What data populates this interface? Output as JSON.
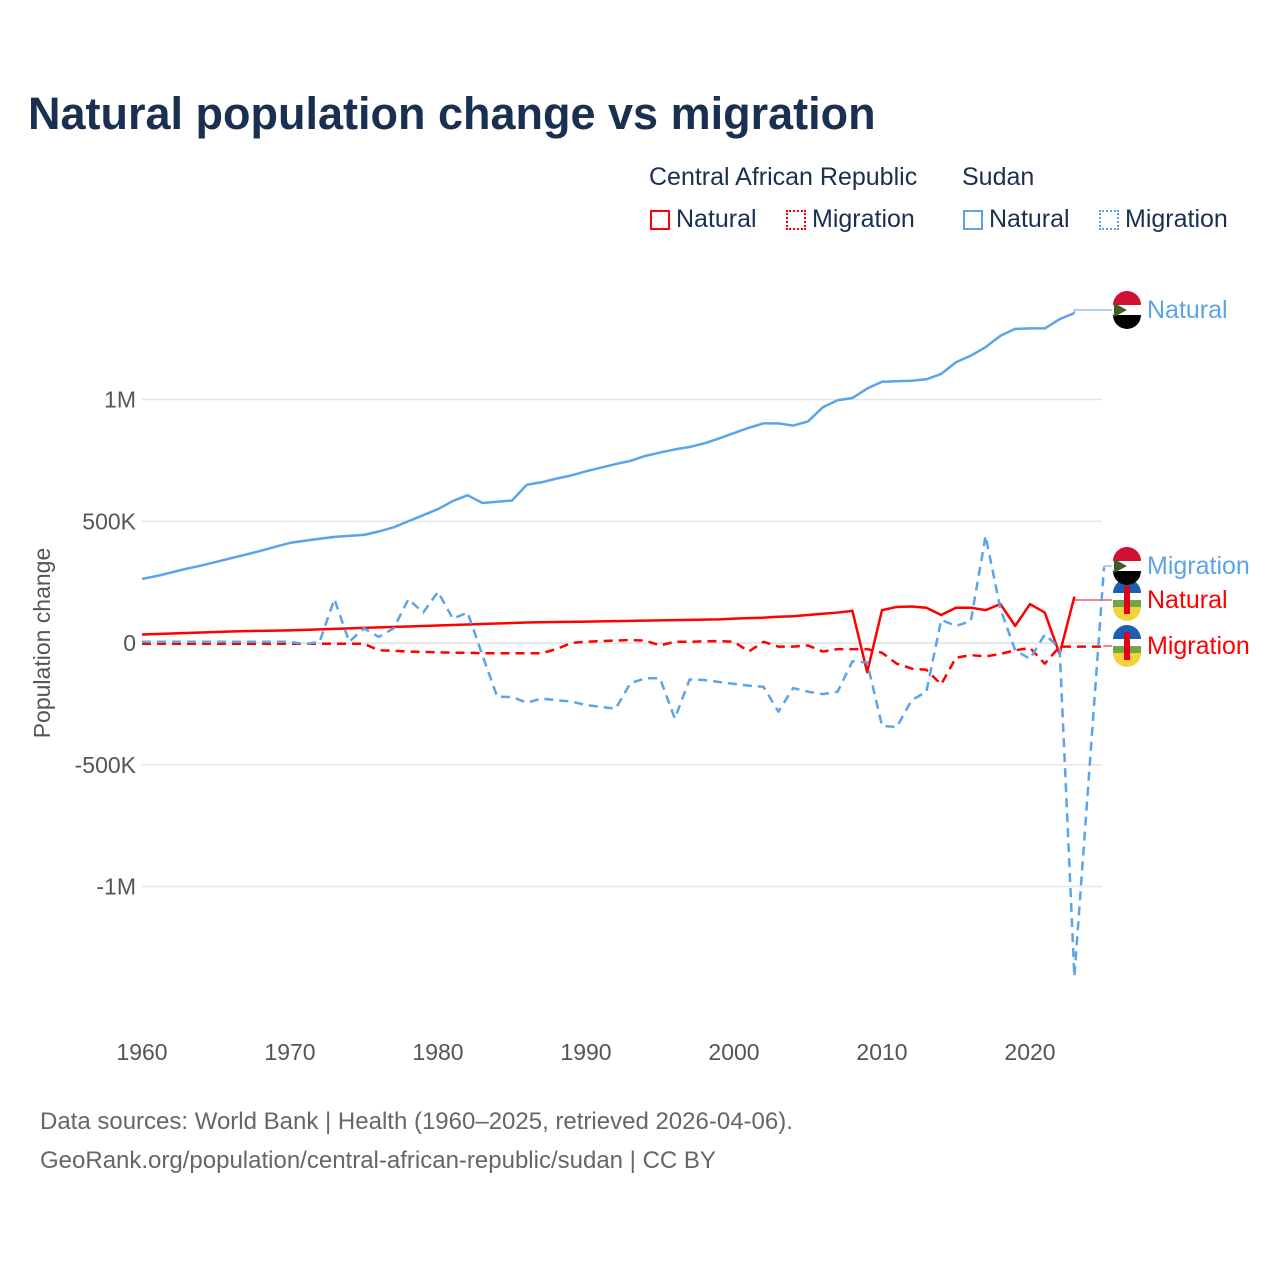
{
  "title": "Natural population change vs migration",
  "legend": {
    "group1": "Central African Republic",
    "group2": "Sudan",
    "natural": "Natural",
    "migration": "Migration"
  },
  "footer": {
    "line1": "Data sources: World Bank | Health (1960–2025, retrieved 2026-04-06).",
    "line2": "GeoRank.org/population/central-african-republic/sudan | CC BY"
  },
  "colors": {
    "car": "#ff0000",
    "sudan": "#5ba4e8"
  },
  "chart_data": {
    "type": "line",
    "title": "Natural population change vs migration",
    "ylabel": "Population change",
    "ylim": [
      -1450000,
      1450000
    ],
    "xlim": [
      1960,
      2025
    ],
    "x_ticks": [
      "1960",
      "1970",
      "1980",
      "1990",
      "2000",
      "2010",
      "2020"
    ],
    "y_ticks": [
      {
        "v": 1000000,
        "label": "1M"
      },
      {
        "v": 500000,
        "label": "500K"
      },
      {
        "v": 0,
        "label": "0"
      },
      {
        "v": -500000,
        "label": "-500K"
      },
      {
        "v": -1000000,
        "label": "-1M"
      }
    ],
    "series": [
      {
        "name": "Sudan Natural",
        "end_label": "Natural",
        "country": "Sudan",
        "dash": false,
        "start": 1960,
        "values": [
          263,
          275,
          290,
          305,
          318,
          333,
          348,
          363,
          378,
          395,
          411,
          420,
          428,
          436,
          440,
          444,
          458,
          475,
          500,
          525,
          550,
          583,
          607,
          575,
          580,
          585,
          650,
          660,
          675,
          688,
          705,
          720,
          735,
          748,
          768,
          782,
          795,
          805,
          820,
          840,
          862,
          884,
          902,
          902,
          893,
          910,
          968,
          997,
          1006,
          1045,
          1073,
          1075,
          1077,
          1083,
          1105,
          1153,
          1180,
          1215,
          1262,
          1290,
          1292,
          1292,
          1330,
          1355
        ]
      },
      {
        "name": "Sudan Migration",
        "end_label": "Migration",
        "country": "Sudan",
        "dash": true,
        "start": 1960,
        "values": [
          5,
          5,
          5,
          5,
          5,
          5,
          5,
          5,
          5,
          5,
          5,
          -5,
          5,
          180,
          5,
          60,
          25,
          60,
          180,
          125,
          210,
          100,
          125,
          -50,
          -220,
          -222,
          -245,
          -228,
          -235,
          -240,
          -255,
          -262,
          -270,
          -165,
          -145,
          -145,
          -310,
          -150,
          -152,
          -160,
          -168,
          -175,
          -180,
          -282,
          -185,
          -200,
          -210,
          -200,
          -75,
          -80,
          -340,
          -345,
          -235,
          -200,
          95,
          70,
          90,
          440,
          140,
          -30,
          -65,
          35,
          -20,
          -1370,
          -530,
          310
        ]
      },
      {
        "name": "Central African Republic Natural",
        "end_label": "Natural",
        "country": "CAR",
        "dash": false,
        "start": 1960,
        "values": [
          35,
          37,
          39,
          41,
          43,
          45,
          47,
          49,
          50,
          51,
          52,
          54,
          56,
          58,
          60,
          62,
          64,
          66,
          68,
          70,
          72,
          74,
          76,
          78,
          80,
          82,
          84,
          85,
          86,
          87,
          88,
          89,
          90,
          91,
          92,
          93,
          94,
          95,
          96,
          97,
          100,
          102,
          104,
          108,
          110,
          115,
          120,
          125,
          132,
          -120,
          135,
          148,
          150,
          145,
          115,
          145,
          145,
          135,
          160,
          70,
          160,
          125,
          -45,
          190
        ]
      },
      {
        "name": "Central African Republic Migration",
        "end_label": "Migration",
        "country": "CAR",
        "dash": true,
        "start": 1960,
        "values": [
          -3,
          -3,
          -3,
          -3,
          -3,
          -3,
          -3,
          -3,
          -3,
          -3,
          -3,
          -3,
          -3,
          -3,
          -3,
          -3,
          -30,
          -32,
          -35,
          -37,
          -38,
          -40,
          -40,
          -42,
          -42,
          -42,
          -42,
          -42,
          -25,
          0,
          5,
          8,
          10,
          12,
          10,
          -10,
          5,
          5,
          7,
          8,
          5,
          -35,
          5,
          -15,
          -15,
          -10,
          -35,
          -25,
          -25,
          -25,
          -40,
          -85,
          -105,
          -110,
          -170,
          -60,
          -50,
          -55,
          -45,
          -30,
          -20,
          -85,
          -15,
          -15,
          -15,
          -15
        ]
      }
    ],
    "value_unit": "thousands"
  }
}
